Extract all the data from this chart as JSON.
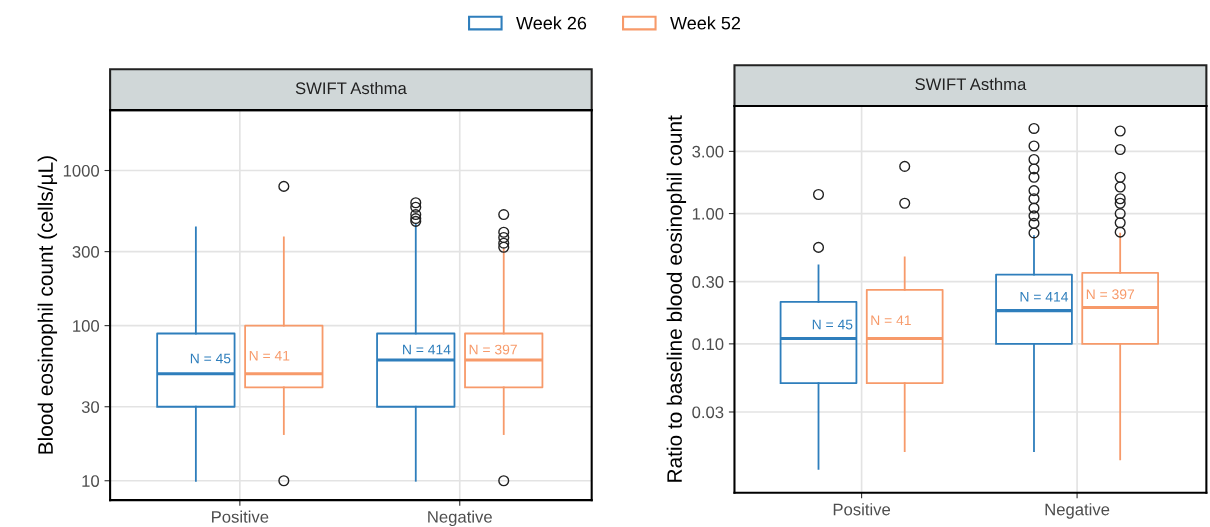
{
  "chart_data": [
    {
      "type": "box",
      "title": "SWIFT Asthma",
      "ylabel": "Blood eosinophil count (cells/µL)",
      "categories": [
        "Positive",
        "Negative"
      ],
      "log": "y",
      "ylim": [
        7.5,
        2450
      ],
      "yticks": [
        10,
        30,
        100,
        300,
        1000
      ],
      "grid": true,
      "legend": "top",
      "series": [
        {
          "name": "Week 26",
          "color": "#2e7ebc",
          "value_labels": [
            "N = 45",
            "N = 414"
          ],
          "boxes": [
            {
              "low": 10,
              "q1": 30,
              "median": 49,
              "q3": 89,
              "high": 430
            },
            {
              "low": 10,
              "q1": 30,
              "median": 60,
              "q3": 89,
              "high": 450,
              "outliers": [
                470,
                490,
                520,
                580,
                620
              ]
            }
          ]
        },
        {
          "name": "Week 52",
          "color": "#f79a6a",
          "value_labels": [
            "N = 41",
            "N = 397"
          ],
          "boxes": [
            {
              "low": 20,
              "q1": 40,
              "median": 49,
              "q3": 100,
              "high": 370,
              "outliers": [
                10,
                790
              ]
            },
            {
              "low": 20,
              "q1": 40,
              "median": 60,
              "q3": 89,
              "high": 310,
              "outliers": [
                10,
                320,
                340,
                370,
                400,
                520
              ]
            }
          ]
        }
      ]
    },
    {
      "type": "box",
      "title": "SWIFT Asthma",
      "ylabel": "Ratio to baseline blood eosinophil count",
      "categories": [
        "Positive",
        "Negative"
      ],
      "log": "y",
      "ylim": [
        0.0072,
        6.7
      ],
      "yticks": [
        {
          "value": 0.03,
          "label": "0.03"
        },
        {
          "value": 0.1,
          "label": "0.10"
        },
        {
          "value": 0.3,
          "label": "0.30"
        },
        {
          "value": 1,
          "label": "1.00"
        },
        {
          "value": 3,
          "label": "3.00"
        }
      ],
      "grid": true,
      "series": [
        {
          "color": "#2e7ebc",
          "value_labels": [
            "N = 45",
            "N = 414"
          ],
          "boxes": [
            {
              "low": 0.011,
              "q1": 0.05,
              "median": 0.11,
              "q3": 0.21,
              "high": 0.4,
              "outliers": [
                0.55,
                1.4
              ]
            },
            {
              "low": 0.015,
              "q1": 0.1,
              "median": 0.18,
              "q3": 0.34,
              "high": 0.67,
              "outliers": [
                0.71,
                0.84,
                0.96,
                1.1,
                1.3,
                1.5,
                1.9,
                2.2,
                2.6,
                3.3,
                4.5
              ]
            }
          ]
        },
        {
          "color": "#f79a6a",
          "value_labels": [
            "N = 41",
            "N = 397"
          ],
          "boxes": [
            {
              "low": 0.015,
              "q1": 0.05,
              "median": 0.11,
              "q3": 0.26,
              "high": 0.46,
              "outliers": [
                1.2,
                2.3
              ]
            },
            {
              "low": 0.013,
              "q1": 0.1,
              "median": 0.19,
              "q3": 0.35,
              "high": 0.7,
              "outliers": [
                0.72,
                0.85,
                1.0,
                1.2,
                1.3,
                1.6,
                1.9,
                3.1,
                4.3
              ]
            }
          ]
        }
      ]
    }
  ]
}
